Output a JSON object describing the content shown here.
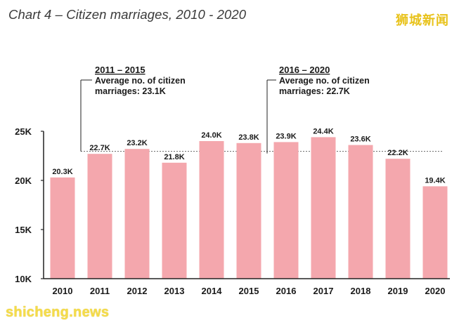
{
  "page": {
    "title": "Chart 4 – Citizen marriages, 2010 - 2020",
    "logo_text": "狮城新闻",
    "watermark_text": "shicheng.news"
  },
  "colors": {
    "bar": "#f4a7ad",
    "axis": "#222222",
    "average_line": "#666666"
  },
  "chart_data": {
    "type": "bar",
    "title": "Chart 4 – Citizen marriages, 2010 - 2020",
    "xlabel": "",
    "ylabel": "",
    "ylim": [
      10,
      25
    ],
    "yticks": [
      10,
      15,
      20,
      25
    ],
    "ytick_labels": [
      "10K",
      "15K",
      "20K",
      "25K"
    ],
    "grid": false,
    "categories": [
      "2010",
      "2011",
      "2012",
      "2013",
      "2014",
      "2015",
      "2016",
      "2017",
      "2018",
      "2019",
      "2020"
    ],
    "values": [
      20.3,
      22.7,
      23.2,
      21.8,
      24.0,
      23.8,
      23.9,
      24.4,
      23.6,
      22.2,
      19.4
    ],
    "value_labels": [
      "20.3K",
      "22.7K",
      "23.2K",
      "21.8K",
      "24.0K",
      "23.8K",
      "23.9K",
      "24.4K",
      "23.6K",
      "22.2K",
      "19.4K"
    ],
    "annotations": [
      {
        "period": "2011 – 2015",
        "line1": "Average no. of citizen",
        "line2": "marriages: 23.1K",
        "average": 23.1,
        "start_index": 1,
        "end_index": 5
      },
      {
        "period": "2016 – 2020",
        "line1": "Average no. of citizen",
        "line2": "marriages: 22.7K",
        "average": 22.7,
        "start_index": 6,
        "end_index": 10
      }
    ]
  }
}
